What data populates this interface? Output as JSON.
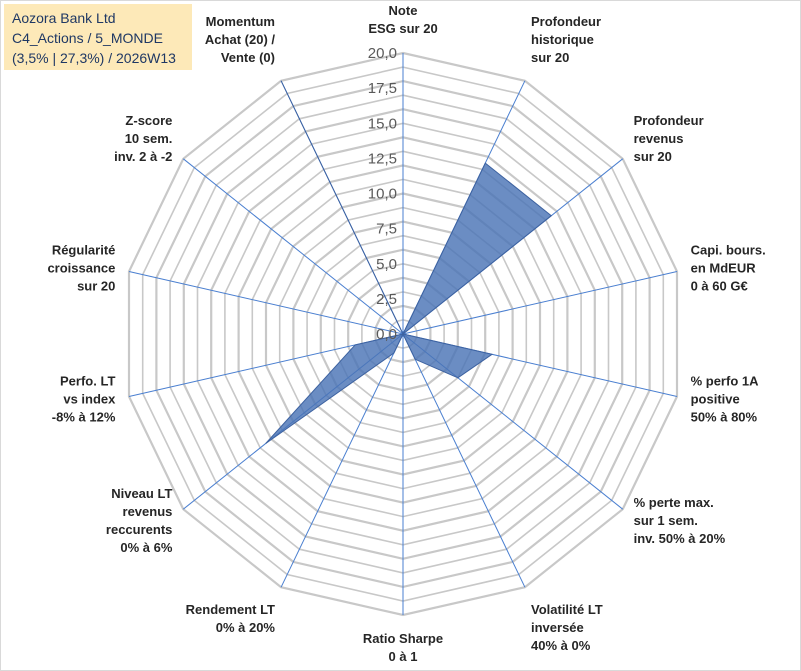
{
  "title_box": {
    "line1": "Aozora Bank Ltd",
    "line2": "C4_Actions / 5_MONDE",
    "line3": "(3,5% | 27,3%) / 2026W13"
  },
  "chart_data": {
    "type": "radar",
    "title": "Aozora Bank Ltd",
    "rmax": 20,
    "rticks": [
      0,
      2.5,
      5,
      7.5,
      10,
      12.5,
      15,
      17.5,
      20
    ],
    "rtick_labels": [
      "0,0",
      "2,5",
      "5,0",
      "7,5",
      "10,0",
      "12,5",
      "15,0",
      "17,5",
      "20,0"
    ],
    "grid_levels": [
      1,
      2,
      3,
      4,
      5,
      6,
      7,
      8,
      9,
      10,
      11,
      12,
      13,
      14,
      15,
      16,
      17,
      18,
      19,
      20
    ],
    "categories": [
      [
        "Note",
        "ESG sur 20"
      ],
      [
        "Profondeur",
        "historique",
        "sur 20"
      ],
      [
        "Profondeur",
        "revenus",
        "sur 20"
      ],
      [
        "Capi. bours.",
        "en MdEUR",
        "0 à 60 G€"
      ],
      [
        "% perfo 1A",
        "positive",
        "50% à 80%"
      ],
      [
        "% perte max.",
        "sur 1 sem.",
        "inv. 50% à 20%"
      ],
      [
        "Volatilité LT",
        "inversée",
        "40% à 0%"
      ],
      [
        "Ratio Sharpe",
        "0 à 1"
      ],
      [
        "Rendement LT",
        "0% à 20%"
      ],
      [
        "Niveau LT",
        "revenus",
        "reccurents",
        "0% à 6%"
      ],
      [
        "Perfo. LT",
        "vs index",
        "-8% à 12%"
      ],
      [
        "Régularité",
        "croissance",
        "sur 20"
      ],
      [
        "Z-score",
        "10 sem.",
        "inv. 2 à -2"
      ],
      [
        "Momentum",
        "Achat (20) /",
        "Vente (0)"
      ]
    ],
    "series": [
      {
        "name": "Aozora Bank Ltd",
        "values": [
          0,
          13.5,
          13.5,
          0,
          6.5,
          5,
          2,
          0,
          1.5,
          12.5,
          3.5,
          0,
          0,
          20
        ],
        "color": "#4a74b6"
      }
    ]
  }
}
